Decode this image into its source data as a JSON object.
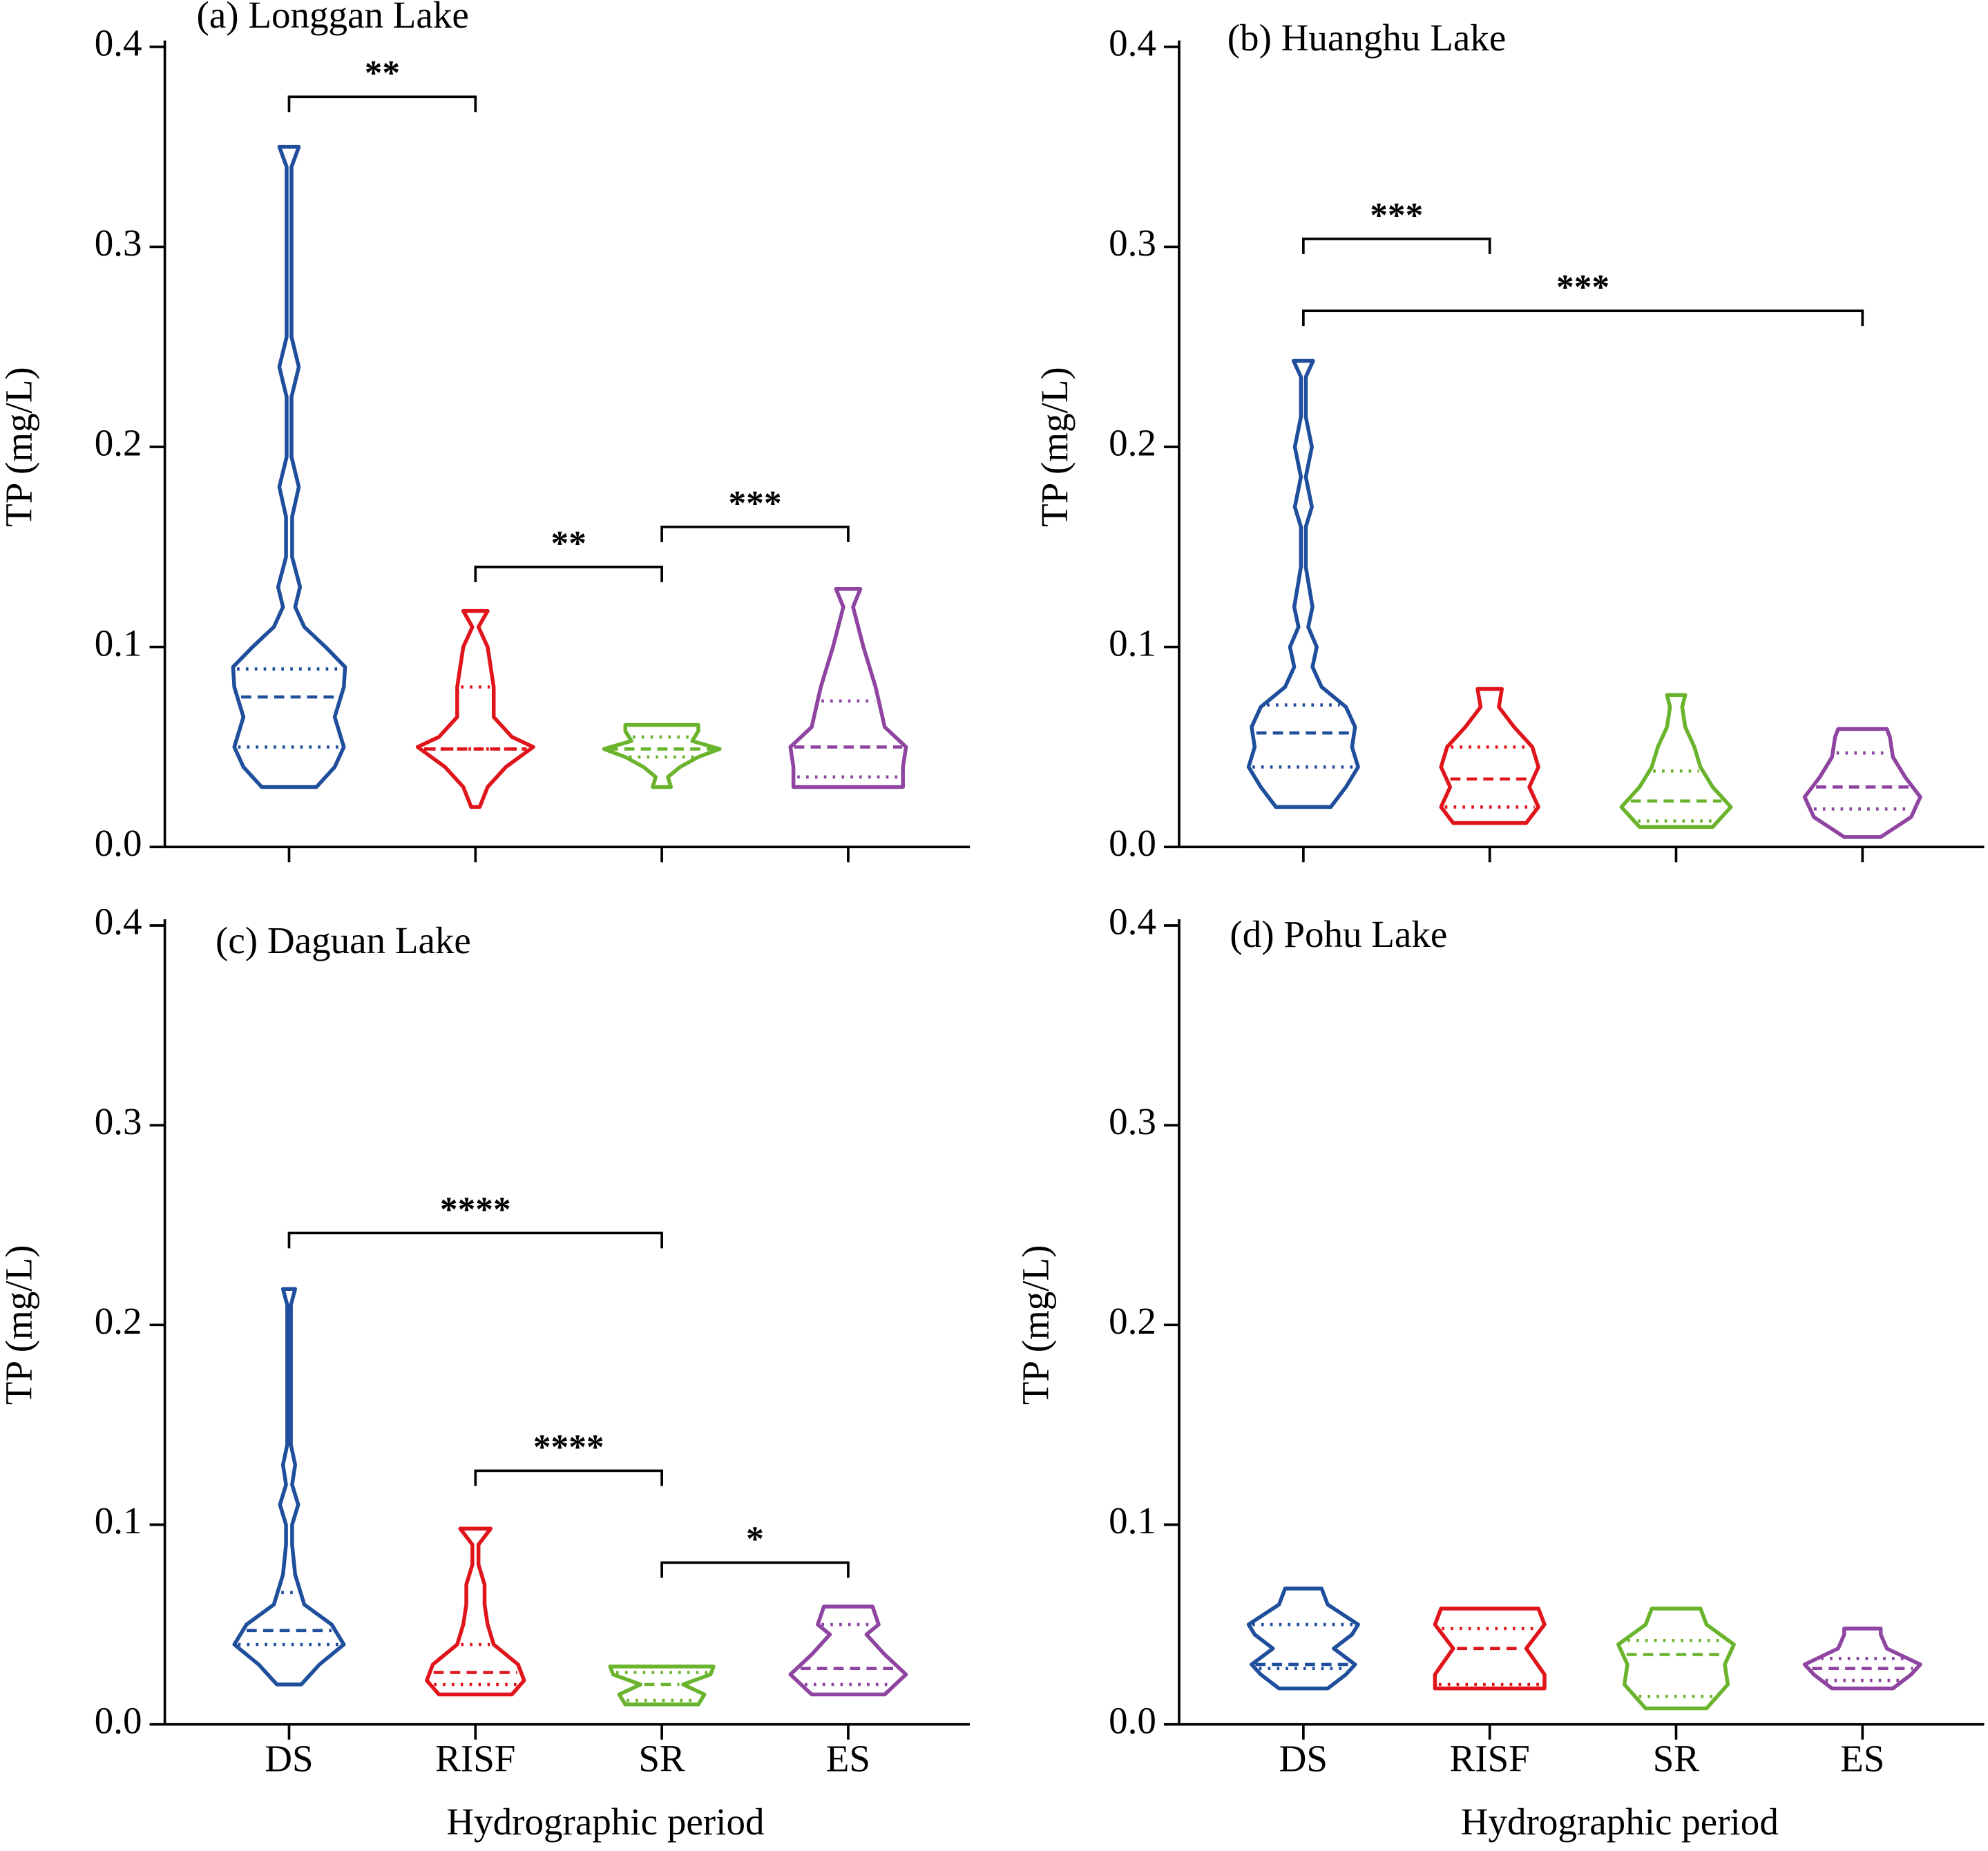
{
  "chart_data": [
    {
      "type": "violin",
      "title": "(a) Longgan Lake",
      "ylabel": "TP (mg/L)",
      "categories": [
        null,
        null,
        null,
        null
      ],
      "colors": [
        "#1f4e9c",
        "#e0151b",
        "#6ab42d",
        "#8e44a0"
      ],
      "ylim": [
        0,
        0.4
      ],
      "yticks": [
        {
          "value": 0,
          "label": "0.0"
        },
        0.1,
        0.2,
        0.3,
        0.4
      ],
      "violins": [
        {
          "outline": [
            [
              0.03,
              0.45
            ],
            [
              0.04,
              0.75
            ],
            [
              0.05,
              0.9
            ],
            [
              0.065,
              0.75
            ],
            [
              0.08,
              0.9
            ],
            [
              0.09,
              0.92
            ],
            [
              0.1,
              0.6
            ],
            [
              0.11,
              0.25
            ],
            [
              0.12,
              0.1
            ],
            [
              0.13,
              0.18
            ],
            [
              0.145,
              0.05
            ],
            [
              0.165,
              0.05
            ],
            [
              0.18,
              0.16
            ],
            [
              0.195,
              0.04
            ],
            [
              0.225,
              0.04
            ],
            [
              0.24,
              0.16
            ],
            [
              0.255,
              0.04
            ],
            [
              0.34,
              0.04
            ],
            [
              0.35,
              0.16
            ]
          ],
          "q1": 0.05,
          "median": 0.075,
          "q3": 0.089
        },
        {
          "outline": [
            [
              0.02,
              0.07
            ],
            [
              0.03,
              0.2
            ],
            [
              0.04,
              0.5
            ],
            [
              0.05,
              0.95
            ],
            [
              0.055,
              0.6
            ],
            [
              0.065,
              0.3
            ],
            [
              0.08,
              0.3
            ],
            [
              0.1,
              0.2
            ],
            [
              0.11,
              0.05
            ],
            [
              0.118,
              0.2
            ]
          ],
          "q1": 0.049,
          "median": 0.049,
          "q3": 0.08
        },
        {
          "outline": [
            [
              0.03,
              0.15
            ],
            [
              0.035,
              0.1
            ],
            [
              0.04,
              0.3
            ],
            [
              0.045,
              0.6
            ],
            [
              0.049,
              0.95
            ],
            [
              0.053,
              0.5
            ],
            [
              0.058,
              0.6
            ],
            [
              0.061,
              0.6
            ]
          ],
          "q1": 0.045,
          "median": 0.049,
          "q3": 0.055
        },
        {
          "outline": [
            [
              0.03,
              0.9
            ],
            [
              0.04,
              0.9
            ],
            [
              0.05,
              0.95
            ],
            [
              0.06,
              0.6
            ],
            [
              0.08,
              0.45
            ],
            [
              0.1,
              0.25
            ],
            [
              0.12,
              0.08
            ],
            [
              0.129,
              0.2
            ]
          ],
          "q1": 0.035,
          "median": 0.05,
          "q3": 0.073
        }
      ],
      "brackets": [
        {
          "from": 0,
          "to": 1,
          "y": 0.375,
          "label": "**"
        },
        {
          "from": 1,
          "to": 2,
          "y": 0.14,
          "label": "**"
        },
        {
          "from": 2,
          "to": 3,
          "y": 0.16,
          "label": "***"
        }
      ]
    },
    {
      "type": "violin",
      "title": "(b) Huanghu Lake",
      "ylabel": "TP (mg/L)",
      "categories": [
        null,
        null,
        null,
        null
      ],
      "colors": [
        "#1f4e9c",
        "#e0151b",
        "#6ab42d",
        "#8e44a0"
      ],
      "ylim": [
        0,
        0.4
      ],
      "yticks": [
        {
          "value": 0,
          "label": "0.0"
        },
        0.1,
        0.2,
        0.3,
        0.4
      ],
      "violins": [
        {
          "outline": [
            [
              0.02,
              0.45
            ],
            [
              0.03,
              0.7
            ],
            [
              0.04,
              0.9
            ],
            [
              0.05,
              0.8
            ],
            [
              0.06,
              0.85
            ],
            [
              0.07,
              0.7
            ],
            [
              0.08,
              0.3
            ],
            [
              0.09,
              0.15
            ],
            [
              0.1,
              0.22
            ],
            [
              0.11,
              0.08
            ],
            [
              0.12,
              0.15
            ],
            [
              0.14,
              0.04
            ],
            [
              0.16,
              0.04
            ],
            [
              0.17,
              0.14
            ],
            [
              0.185,
              0.04
            ],
            [
              0.2,
              0.14
            ],
            [
              0.215,
              0.04
            ],
            [
              0.235,
              0.04
            ],
            [
              0.243,
              0.16
            ]
          ],
          "q1": 0.04,
          "median": 0.057,
          "q3": 0.071
        },
        {
          "outline": [
            [
              0.012,
              0.6
            ],
            [
              0.02,
              0.8
            ],
            [
              0.03,
              0.65
            ],
            [
              0.04,
              0.8
            ],
            [
              0.05,
              0.7
            ],
            [
              0.06,
              0.4
            ],
            [
              0.07,
              0.15
            ],
            [
              0.079,
              0.2
            ]
          ],
          "q1": 0.02,
          "median": 0.034,
          "q3": 0.05
        },
        {
          "outline": [
            [
              0.01,
              0.6
            ],
            [
              0.02,
              0.9
            ],
            [
              0.03,
              0.6
            ],
            [
              0.04,
              0.4
            ],
            [
              0.05,
              0.3
            ],
            [
              0.06,
              0.15
            ],
            [
              0.07,
              0.1
            ],
            [
              0.076,
              0.15
            ]
          ],
          "q1": 0.013,
          "median": 0.023,
          "q3": 0.038
        },
        {
          "outline": [
            [
              0.005,
              0.3
            ],
            [
              0.015,
              0.8
            ],
            [
              0.025,
              0.95
            ],
            [
              0.035,
              0.7
            ],
            [
              0.045,
              0.5
            ],
            [
              0.055,
              0.45
            ],
            [
              0.059,
              0.4
            ]
          ],
          "q1": 0.019,
          "median": 0.03,
          "q3": 0.047
        }
      ],
      "brackets": [
        {
          "from": 0,
          "to": 1,
          "y": 0.304,
          "label": "***"
        },
        {
          "from": 0,
          "to": 3,
          "y": 0.268,
          "label": "***"
        }
      ]
    },
    {
      "type": "violin",
      "title": "(c) Daguan Lake",
      "ylabel": "TP (mg/L)",
      "xlabel": "Hydrographic period",
      "categories": [
        "DS",
        "RISF",
        "SR",
        "ES"
      ],
      "colors": [
        "#1f4e9c",
        "#e0151b",
        "#6ab42d",
        "#8e44a0"
      ],
      "ylim": [
        0,
        0.4
      ],
      "yticks": [
        {
          "value": 0,
          "label": "0.0"
        },
        0.1,
        0.2,
        0.3,
        0.4
      ],
      "violins": [
        {
          "outline": [
            [
              0.02,
              0.2
            ],
            [
              0.03,
              0.5
            ],
            [
              0.04,
              0.9
            ],
            [
              0.05,
              0.7
            ],
            [
              0.06,
              0.25
            ],
            [
              0.075,
              0.1
            ],
            [
              0.09,
              0.05
            ],
            [
              0.1,
              0.05
            ],
            [
              0.11,
              0.15
            ],
            [
              0.12,
              0.05
            ],
            [
              0.13,
              0.1
            ],
            [
              0.14,
              0.03
            ],
            [
              0.21,
              0.03
            ],
            [
              0.218,
              0.1
            ]
          ],
          "q1": 0.04,
          "median": 0.047,
          "q3": 0.066
        },
        {
          "outline": [
            [
              0.015,
              0.6
            ],
            [
              0.022,
              0.8
            ],
            [
              0.03,
              0.7
            ],
            [
              0.04,
              0.3
            ],
            [
              0.05,
              0.2
            ],
            [
              0.06,
              0.15
            ],
            [
              0.07,
              0.15
            ],
            [
              0.08,
              0.05
            ],
            [
              0.09,
              0.05
            ],
            [
              0.098,
              0.25
            ]
          ],
          "q1": 0.02,
          "median": 0.026,
          "q3": 0.04
        },
        {
          "outline": [
            [
              0.01,
              0.6
            ],
            [
              0.015,
              0.7
            ],
            [
              0.02,
              0.35
            ],
            [
              0.025,
              0.8
            ],
            [
              0.029,
              0.85
            ]
          ],
          "q1": 0.012,
          "median": 0.02,
          "q3": 0.026
        },
        {
          "outline": [
            [
              0.015,
              0.6
            ],
            [
              0.025,
              0.95
            ],
            [
              0.035,
              0.6
            ],
            [
              0.045,
              0.3
            ],
            [
              0.05,
              0.5
            ],
            [
              0.059,
              0.4
            ]
          ],
          "q1": 0.02,
          "median": 0.028,
          "q3": 0.05
        }
      ],
      "brackets": [
        {
          "from": 0,
          "to": 2,
          "y": 0.246,
          "label": "****"
        },
        {
          "from": 1,
          "to": 2,
          "y": 0.127,
          "label": "****"
        },
        {
          "from": 2,
          "to": 3,
          "y": 0.081,
          "label": "*"
        }
      ]
    },
    {
      "type": "violin",
      "title": "(d) Pohu Lake",
      "ylabel": "TP (mg/L)",
      "xlabel": "Hydrographic period",
      "categories": [
        "DS",
        "RISF",
        "SR",
        "ES"
      ],
      "colors": [
        "#1f4e9c",
        "#e0151b",
        "#6ab42d",
        "#8e44a0"
      ],
      "ylim": [
        0,
        0.4
      ],
      "yticks": [
        {
          "value": 0,
          "label": "0.0"
        },
        0.1,
        0.2,
        0.3,
        0.4
      ],
      "violins": [
        {
          "outline": [
            [
              0.018,
              0.4
            ],
            [
              0.025,
              0.7
            ],
            [
              0.03,
              0.85
            ],
            [
              0.038,
              0.5
            ],
            [
              0.045,
              0.8
            ],
            [
              0.05,
              0.9
            ],
            [
              0.06,
              0.4
            ],
            [
              0.068,
              0.3
            ]
          ],
          "q1": 0.028,
          "median": 0.03,
          "q3": 0.05
        },
        {
          "outline": [
            [
              0.018,
              0.9
            ],
            [
              0.025,
              0.9
            ],
            [
              0.038,
              0.6
            ],
            [
              0.05,
              0.9
            ],
            [
              0.058,
              0.8
            ]
          ],
          "q1": 0.02,
          "median": 0.038,
          "q3": 0.048
        },
        {
          "outline": [
            [
              0.008,
              0.5
            ],
            [
              0.02,
              0.85
            ],
            [
              0.03,
              0.8
            ],
            [
              0.04,
              0.95
            ],
            [
              0.05,
              0.5
            ],
            [
              0.058,
              0.4
            ]
          ],
          "q1": 0.014,
          "median": 0.035,
          "q3": 0.042
        },
        {
          "outline": [
            [
              0.018,
              0.5
            ],
            [
              0.025,
              0.8
            ],
            [
              0.03,
              0.95
            ],
            [
              0.038,
              0.4
            ],
            [
              0.045,
              0.3
            ],
            [
              0.048,
              0.3
            ]
          ],
          "q1": 0.022,
          "median": 0.028,
          "q3": 0.033
        }
      ],
      "brackets": []
    }
  ]
}
